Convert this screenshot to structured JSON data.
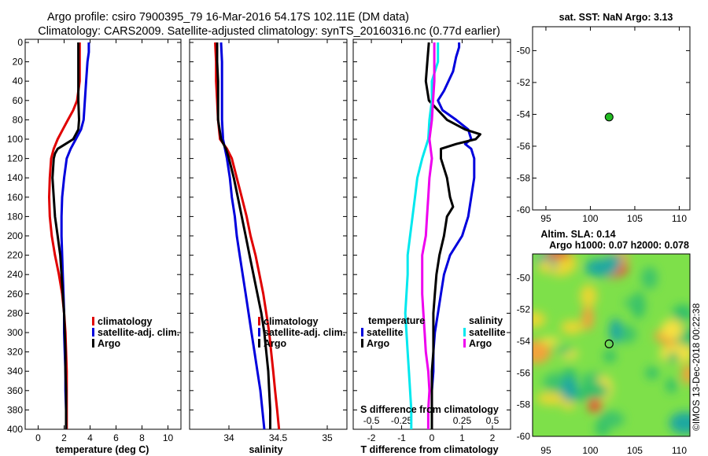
{
  "titles": {
    "line1": "Argo profile: csiro 7900395_79 16-Mar-2016 54.17S 102.11E (DM data)",
    "line2": "Climatology: CARS2009. Satellite-adjusted climatology: synTS_20160316.nc (0.77d earlier)"
  },
  "depth_ticks": [
    "0",
    "20",
    "40",
    "60",
    "80",
    "100",
    "120",
    "140",
    "160",
    "180",
    "200",
    "220",
    "240",
    "260",
    "280",
    "300",
    "320",
    "340",
    "360",
    "380",
    "400"
  ],
  "colors": {
    "climatology": "#e00000",
    "satellite": "#0000dd",
    "argo": "#000000",
    "cyan": "#00e8ee",
    "magenta": "#ee00ee",
    "marker": "#22bb22"
  },
  "chart_data": [
    {
      "type": "line",
      "name": "temperature",
      "xlabel": "temperature (deg C)",
      "xlim": [
        -1,
        11
      ],
      "xticks": [
        "0",
        "2",
        "4",
        "6",
        "8",
        "10"
      ],
      "ylim": [
        400,
        0
      ],
      "legend": [
        "climatology",
        "satellite-adj. clim.",
        "Argo"
      ],
      "series": [
        {
          "name": "climatology",
          "depth": [
            0,
            20,
            40,
            60,
            70,
            80,
            90,
            100,
            110,
            120,
            140,
            160,
            180,
            200,
            220,
            240,
            260,
            280,
            300,
            320,
            340,
            360,
            380,
            400
          ],
          "values": [
            3.2,
            3.2,
            3.2,
            3.0,
            2.7,
            2.3,
            1.9,
            1.5,
            1.2,
            1.0,
            0.9,
            0.85,
            0.9,
            1.05,
            1.3,
            1.6,
            1.85,
            2.0,
            2.1,
            2.15,
            2.2,
            2.2,
            2.2,
            2.2
          ]
        },
        {
          "name": "satellite-adj. clim.",
          "depth": [
            0,
            10,
            20,
            40,
            60,
            80,
            90,
            100,
            110,
            120,
            140,
            160,
            180,
            200,
            220,
            240,
            260,
            280,
            300,
            320,
            340,
            360,
            380,
            400
          ],
          "values": [
            3.9,
            3.9,
            3.8,
            3.7,
            3.6,
            3.5,
            3.3,
            2.9,
            2.5,
            2.2,
            2.0,
            1.85,
            1.8,
            1.8,
            1.85,
            1.9,
            1.95,
            2.0,
            2.0,
            2.05,
            2.1,
            2.1,
            2.15,
            2.15
          ]
        },
        {
          "name": "Argo",
          "depth": [
            0,
            20,
            40,
            60,
            80,
            90,
            100,
            105,
            110,
            115,
            120,
            140,
            160,
            180,
            200,
            220,
            240,
            260,
            280,
            300,
            320,
            340,
            360,
            380,
            400
          ],
          "values": [
            3.1,
            3.1,
            3.1,
            3.1,
            3.15,
            3.1,
            2.7,
            2.1,
            1.5,
            1.3,
            1.2,
            1.1,
            1.2,
            1.3,
            1.5,
            1.7,
            1.8,
            1.9,
            2.0,
            2.05,
            2.1,
            2.1,
            2.15,
            2.15,
            2.15
          ]
        }
      ]
    },
    {
      "type": "line",
      "name": "salinity",
      "xlabel": "salinity",
      "xlim": [
        33.6,
        35.2
      ],
      "xticks": [
        "34",
        "34.5",
        "35"
      ],
      "ylim": [
        400,
        0
      ],
      "legend": [
        "climatology",
        "satellite-adj. clim.",
        "Argo"
      ],
      "series": [
        {
          "name": "climatology",
          "depth": [
            0,
            20,
            40,
            60,
            80,
            100,
            110,
            120,
            140,
            160,
            180,
            200,
            220,
            240,
            260,
            280,
            300,
            320,
            340,
            360,
            380,
            400
          ],
          "values": [
            33.86,
            33.87,
            33.87,
            33.88,
            33.89,
            33.91,
            33.98,
            34.03,
            34.08,
            34.13,
            34.18,
            34.22,
            34.27,
            34.31,
            34.35,
            34.38,
            34.41,
            34.43,
            34.45,
            34.47,
            34.49,
            34.51
          ]
        },
        {
          "name": "satellite-adj. clim.",
          "depth": [
            0,
            20,
            40,
            60,
            80,
            100,
            110,
            120,
            140,
            160,
            180,
            200,
            220,
            240,
            260,
            280,
            300,
            320,
            340,
            360,
            380,
            400
          ],
          "values": [
            33.92,
            33.93,
            33.93,
            33.93,
            33.93,
            33.94,
            33.96,
            33.98,
            34.01,
            34.03,
            34.06,
            34.08,
            34.11,
            34.14,
            34.17,
            34.2,
            34.23,
            34.26,
            34.29,
            34.32,
            34.34,
            34.36
          ]
        },
        {
          "name": "Argo",
          "depth": [
            0,
            20,
            40,
            60,
            80,
            100,
            110,
            120,
            140,
            160,
            180,
            200,
            220,
            240,
            260,
            280,
            300,
            320,
            340,
            360,
            380,
            400
          ],
          "values": [
            33.88,
            33.88,
            33.89,
            33.89,
            33.89,
            33.92,
            33.97,
            34.0,
            34.05,
            34.09,
            34.13,
            34.17,
            34.21,
            34.25,
            34.29,
            34.33,
            34.36,
            34.38,
            34.4,
            34.41,
            34.42,
            34.42
          ]
        }
      ]
    },
    {
      "type": "line",
      "name": "difference from climatology",
      "xlabel": "T difference from climatology",
      "xlabel_top": "S difference from climatology",
      "xlim": [
        -2.6,
        2.6
      ],
      "xticks": [
        "-2",
        "-1",
        "0",
        "1",
        "2"
      ],
      "xticks_top": [
        "-0.5",
        "-0.25",
        "0.25",
        "0.5"
      ],
      "ylim": [
        400,
        0
      ],
      "legend_temperature_title": "temperature",
      "legend_salinity_title": "salinity",
      "legend_temperature": [
        "satellite",
        "Argo"
      ],
      "legend_salinity": [
        "satellite",
        "Argo"
      ],
      "series": [
        {
          "name": "T satellite",
          "depth": [
            0,
            5,
            15,
            30,
            50,
            60,
            70,
            80,
            90,
            100,
            105,
            110,
            120,
            140,
            160,
            180,
            200,
            220,
            240,
            260,
            280,
            300,
            320,
            340,
            360,
            380,
            400
          ],
          "values": [
            0.9,
            0.9,
            0.8,
            0.7,
            0.4,
            0.2,
            0.35,
            0.8,
            1.2,
            1.3,
            1.1,
            1.3,
            1.4,
            1.4,
            1.3,
            1.2,
            1.0,
            0.6,
            0.4,
            0.3,
            0.2,
            0.1,
            0.05,
            0.05,
            0.0,
            0.0,
            0.0
          ]
        },
        {
          "name": "T Argo",
          "depth": [
            0,
            20,
            40,
            60,
            80,
            90,
            95,
            100,
            105,
            110,
            120,
            140,
            160,
            170,
            180,
            200,
            220,
            240,
            260,
            280,
            300,
            320,
            340,
            360,
            380,
            400
          ],
          "values": [
            -0.1,
            -0.15,
            -0.2,
            -0.1,
            0.5,
            1.1,
            1.6,
            1.45,
            0.8,
            0.3,
            0.3,
            0.5,
            0.6,
            0.7,
            0.5,
            0.4,
            0.25,
            0.15,
            0.1,
            0.05,
            0.05,
            0.05,
            0.0,
            0.0,
            0.0,
            0.0
          ]
        },
        {
          "name": "S satellite",
          "depth": [
            0,
            20,
            40,
            60,
            80,
            100,
            120,
            140,
            160,
            180,
            200,
            220,
            240,
            260,
            280,
            300,
            320,
            340,
            360,
            380,
            400
          ],
          "values": [
            0.05,
            0.05,
            0.0,
            0.0,
            -0.02,
            -0.03,
            -0.08,
            -0.12,
            -0.14,
            -0.16,
            -0.18,
            -0.2,
            -0.2,
            -0.21,
            -0.22,
            -0.21,
            -0.2,
            -0.19,
            -0.18,
            -0.17,
            -0.17
          ]
        },
        {
          "name": "S Argo",
          "depth": [
            0,
            20,
            40,
            60,
            80,
            100,
            120,
            140,
            160,
            180,
            200,
            220,
            240,
            260,
            280,
            300,
            320,
            340,
            360,
            380,
            400
          ],
          "values": [
            0.02,
            0.02,
            0.02,
            0.01,
            0.0,
            -0.02,
            0.0,
            -0.02,
            -0.03,
            -0.04,
            -0.05,
            -0.08,
            -0.08,
            -0.08,
            -0.07,
            -0.06,
            -0.05,
            -0.03,
            -0.02,
            -0.03,
            -0.03
          ]
        }
      ]
    },
    {
      "type": "scatter",
      "name": "sat-sst-map",
      "title": "sat. SST: NaN Argo: 3.13",
      "xlim": [
        93.5,
        111.2
      ],
      "ylim": [
        -60,
        -48.5
      ],
      "xticks": [
        "95",
        "100",
        "105",
        "110"
      ],
      "yticks": [
        "-50",
        "-52",
        "-54",
        "-56",
        "-58",
        "-60"
      ],
      "points": [
        {
          "x": 102.11,
          "y": -54.17
        }
      ]
    },
    {
      "type": "heatmap",
      "name": "altimetry-sla-map",
      "title_line1": "Altim. SLA: 0.14",
      "title_line2": "Argo h1000: 0.07 h2000: 0.078",
      "xlim": [
        93.5,
        111.2
      ],
      "ylim": [
        -60,
        -48.5
      ],
      "xticks": [
        "95",
        "100",
        "105",
        "110"
      ],
      "yticks": [
        "-50",
        "-52",
        "-54",
        "-56",
        "-58",
        "-60"
      ],
      "points": [
        {
          "x": 102.11,
          "y": -54.17
        }
      ]
    }
  ],
  "watermark": "©IMOS 13-Dec-2018 00:22:38"
}
